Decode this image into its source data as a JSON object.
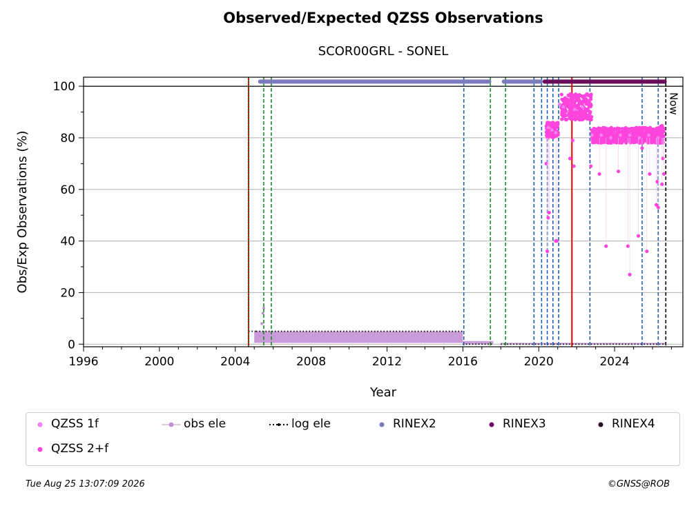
{
  "footer": {
    "timestamp": "Tue Aug 25 13:07:09 2026",
    "credit": "©GNSS@ROB"
  },
  "chart_data": {
    "type": "scatter",
    "title": "Observed/Expected QZSS Observations",
    "subtitle": "SCOR00GRL - SONEL",
    "xlabel": "Year",
    "ylabel": "Obs/Exp Observations (%)",
    "xlim": [
      1996.0,
      2027.6
    ],
    "ylim": [
      -1,
      103.5
    ],
    "x_ticks": [
      1996,
      2000,
      2004,
      2008,
      2012,
      2016,
      2020,
      2024
    ],
    "y_ticks": [
      0,
      20,
      40,
      60,
      80,
      100
    ],
    "grid": "horizontal",
    "legend_placement": "below",
    "now_label": "Now",
    "reference_line_y": 100,
    "colors": {
      "qzss_1f": "#ee82ee",
      "qzss_2f": "#ff44dd",
      "obs_ele": "#c390d4",
      "log_ele": "#000000",
      "rinex2": "#7b7bbd",
      "rinex3": "#6a0d5a",
      "rinex4": "#2a0a2a",
      "receiver_change": "#1f5fa8",
      "antenna_change": "#1a8a1a",
      "red_event": "#dd0000"
    },
    "legend": [
      {
        "label": "QZSS 1f",
        "marker": "dot",
        "color": "#ee82ee"
      },
      {
        "label": "obs ele",
        "marker": "line-dot",
        "color": "#c390d4"
      },
      {
        "label": "log ele",
        "marker": "dotted-line",
        "color": "#000000"
      },
      {
        "label": "RINEX2",
        "marker": "dot",
        "color": "#7b7bbd"
      },
      {
        "label": "RINEX3",
        "marker": "dot",
        "color": "#6a0d5a"
      },
      {
        "label": "RINEX4",
        "marker": "dot",
        "color": "#2a0a2a"
      },
      {
        "label": "QZSS 2+f",
        "marker": "dot",
        "color": "#ff44dd"
      }
    ],
    "vertical_events": {
      "receiver_change_dashed": [
        2016.05,
        2019.75,
        2020.15,
        2020.45,
        2020.75,
        2021.05,
        2022.7,
        2025.45,
        2026.3
      ],
      "antenna_change_dashed": [
        2005.5,
        2005.9,
        2017.45,
        2018.25
      ],
      "red_solid": [
        2004.7,
        2021.75
      ],
      "now_black_dashed": [
        2026.7
      ]
    },
    "rinex_bars": [
      {
        "name": "RINEX2",
        "y": 101.8,
        "segments": [
          [
            2005.2,
            2017.5
          ],
          [
            2018.05,
            2020.2
          ]
        ]
      },
      {
        "name": "RINEX3",
        "y": 101.8,
        "segments": [
          [
            2020.2,
            2026.75
          ]
        ]
      }
    ],
    "log_ele": [
      {
        "x": [
          2004.7,
          2005.1
        ],
        "y": [
          5,
          5
        ]
      },
      {
        "x": [
          2005.1,
          2016.0
        ],
        "y": [
          5,
          5
        ]
      },
      {
        "x": [
          2016.0,
          2017.6
        ],
        "y": [
          0,
          0
        ]
      },
      {
        "x": [
          2018.0,
          2026.7
        ],
        "y": [
          0,
          0
        ]
      }
    ],
    "obs_ele_segments": [
      {
        "x": [
          2005.0,
          2016.0
        ],
        "y_range": [
          0.5,
          5
        ]
      },
      {
        "x": [
          2016.0,
          2017.6
        ],
        "y_range": [
          0,
          1.2
        ]
      },
      {
        "x": [
          2018.0,
          2026.7
        ],
        "y_range": [
          0,
          0.5
        ]
      }
    ],
    "obs_ele_spike": {
      "x": [
        2005.3,
        2005.4,
        2005.45,
        2005.5
      ],
      "y": [
        3,
        8,
        12,
        14
      ]
    },
    "series": [
      {
        "name": "QZSS 1f",
        "color": "#ee82ee",
        "x": [
          2020.5,
          2020.7,
          2020.9,
          2021.1,
          2021.3,
          2021.9,
          2022.3,
          2022.8,
          2023.3,
          2023.8,
          2024.3,
          2024.8,
          2025.3,
          2025.8,
          2026.3
        ],
        "y": [
          84,
          83,
          82,
          93,
          92,
          91,
          92,
          81,
          81,
          80,
          81,
          81,
          80,
          81,
          80
        ]
      },
      {
        "name": "QZSS 2+f",
        "color": "#ff44dd",
        "clusters": [
          {
            "x_range": [
              2020.4,
              2021.05
            ],
            "y_range": [
              80,
              86
            ]
          },
          {
            "x_range": [
              2021.2,
              2022.8
            ],
            "y_range": [
              87,
              97
            ]
          },
          {
            "x_range": [
              2022.8,
              2026.55
            ],
            "y_range": [
              78,
              84
            ]
          },
          {
            "x_range": [
              2026.4,
              2026.6
            ],
            "y_range": [
              78,
              85
            ]
          }
        ],
        "outliers_x": [
          2020.4,
          2020.45,
          2020.5,
          2020.55,
          2020.9,
          2020.95,
          2021.65,
          2021.8,
          2021.85,
          2022.75,
          2023.2,
          2023.55,
          2024.2,
          2024.7,
          2024.8,
          2025.25,
          2025.45,
          2025.7,
          2025.85,
          2026.2,
          2026.25,
          2026.3,
          2026.5,
          2026.55,
          2026.6
        ],
        "outliers_y": [
          70,
          36,
          49,
          51,
          40,
          40,
          72,
          79,
          69,
          69,
          66,
          38,
          67,
          38,
          27,
          42,
          76,
          36,
          66,
          54,
          63,
          53,
          62,
          72,
          66
        ]
      }
    ]
  }
}
